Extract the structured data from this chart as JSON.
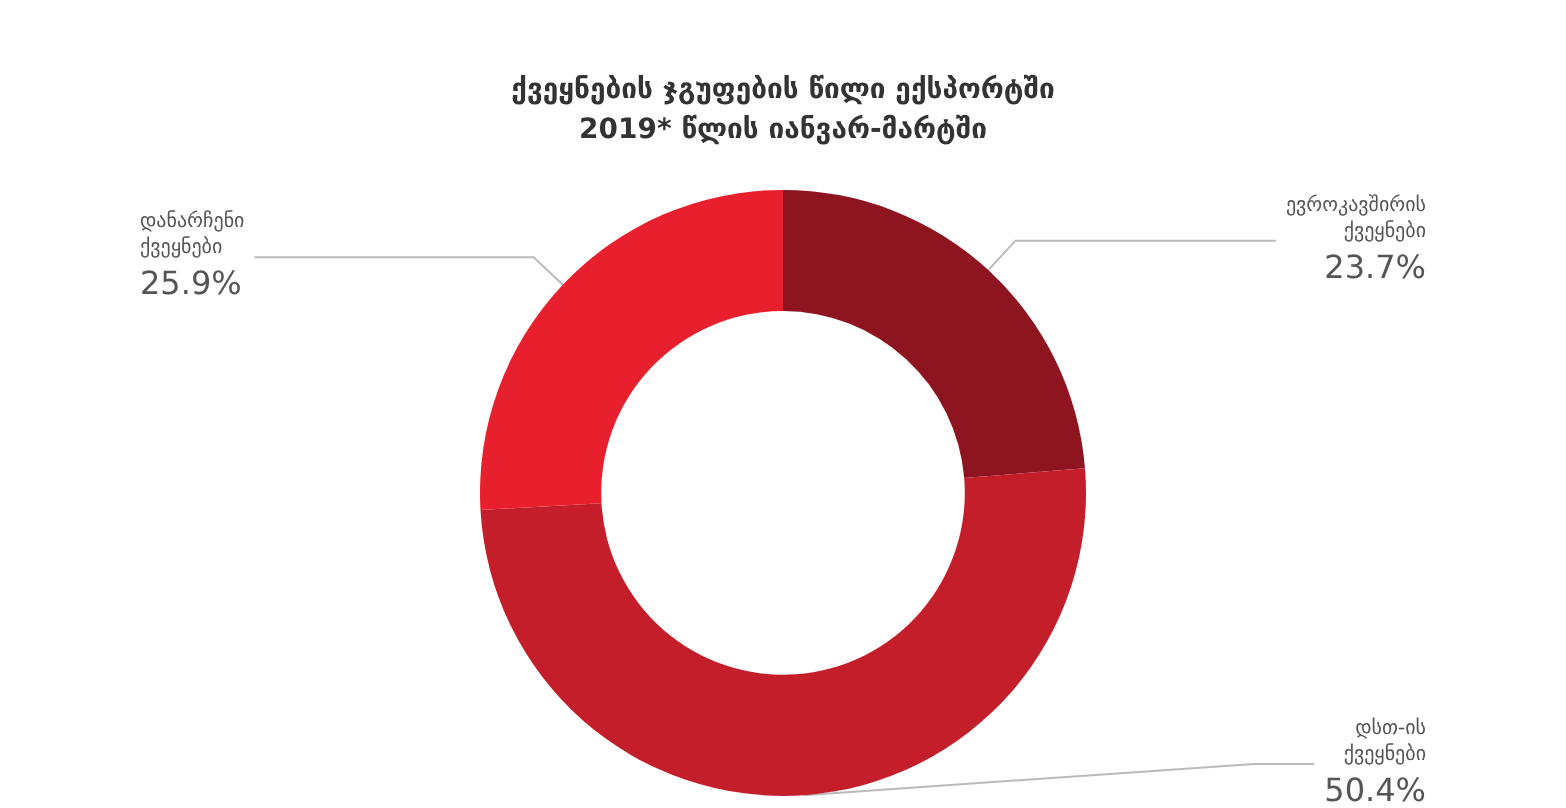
{
  "chart_data": {
    "type": "donut",
    "title": "ქვეყნების ჯგუფების წილი ექსპორტში\n2019* წლის იანვარ-მარტში",
    "categories": [
      "ევროკავშირის ქვეყნები",
      "დსთ-ის ქვეყნები",
      "დანარჩენი ქვეყნები"
    ],
    "values": [
      23.7,
      50.4,
      25.9
    ],
    "colors": [
      "#8e1520",
      "#c41e2a",
      "#e8202e"
    ],
    "value_labels": [
      "23.7%",
      "50.4%",
      "25.9%"
    ],
    "legend": false
  }
}
